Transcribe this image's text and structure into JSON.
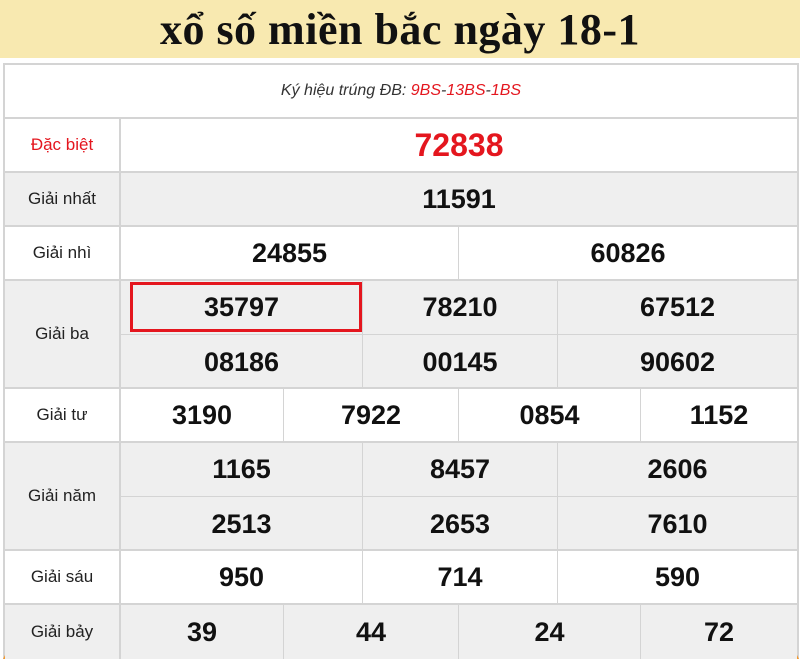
{
  "title": "xổ số miền bắc ngày 18-1",
  "ky_hieu": {
    "label": "Ký hiệu trúng ĐB:",
    "codes": [
      "9BS",
      "13BS",
      "1BS"
    ],
    "sep": " - "
  },
  "prizes": {
    "db": {
      "label": "Đặc biệt",
      "values": [
        "72838"
      ]
    },
    "g1": {
      "label": "Giải nhất",
      "values": [
        "11591"
      ]
    },
    "g2": {
      "label": "Giải nhì",
      "values": [
        "24855",
        "60826"
      ]
    },
    "g3": {
      "label": "Giải ba",
      "values": [
        "35797",
        "78210",
        "67512",
        "08186",
        "00145",
        "90602"
      ]
    },
    "g4": {
      "label": "Giải tư",
      "values": [
        "3190",
        "7922",
        "0854",
        "1152"
      ]
    },
    "g5": {
      "label": "Giải năm",
      "values": [
        "1165",
        "8457",
        "2606",
        "2513",
        "2653",
        "7610"
      ]
    },
    "g6": {
      "label": "Giải sáu",
      "values": [
        "950",
        "714",
        "590"
      ]
    },
    "g7": {
      "label": "Giải bảy",
      "values": [
        "39",
        "44",
        "24",
        "72"
      ]
    }
  },
  "highlighted": "35797",
  "colors": {
    "accent_red": "#e4161e",
    "header_bg": "#f8e9b0",
    "bottom_border": "#f5992e"
  }
}
